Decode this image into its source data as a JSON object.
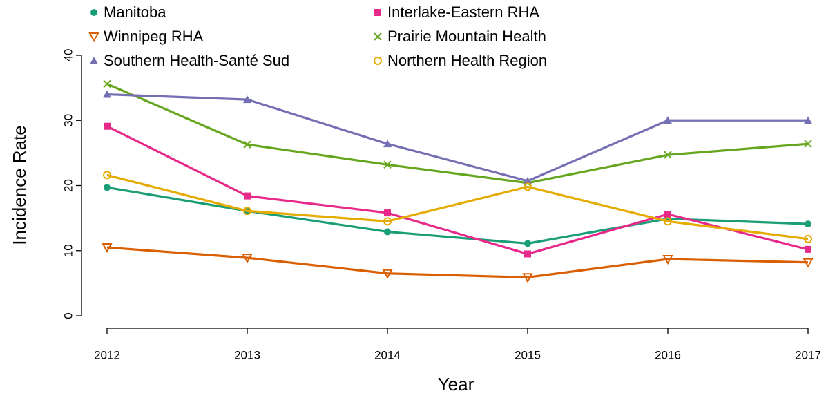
{
  "chart_data": {
    "type": "line",
    "xlabel": "Year",
    "ylabel": "Incidence Rate",
    "x": [
      2012,
      2013,
      2014,
      2015,
      2016,
      2017
    ],
    "xlim": [
      2012,
      2017
    ],
    "xticks": [
      2012,
      2013,
      2014,
      2015,
      2016,
      2017
    ],
    "ylim": [
      0,
      40
    ],
    "yticks": [
      0,
      10,
      20,
      30,
      40
    ],
    "legend": "top",
    "series": [
      {
        "name": "Manitoba",
        "color": "#1b9e77",
        "marker": "circle",
        "values": [
          19.7,
          16.1,
          12.9,
          11.1,
          14.9,
          14.1
        ]
      },
      {
        "name": "Interlake-Eastern RHA",
        "color": "#e7298a",
        "marker": "square",
        "values": [
          29.1,
          18.4,
          15.8,
          9.5,
          15.6,
          10.2
        ]
      },
      {
        "name": "Winnipeg RHA",
        "color": "#d95f02",
        "marker": "triangle-down-open",
        "values": [
          10.5,
          8.9,
          6.5,
          5.9,
          8.7,
          8.2
        ]
      },
      {
        "name": "Prairie Mountain Health",
        "color": "#66a61e",
        "marker": "cross",
        "values": [
          35.6,
          26.3,
          23.2,
          20.4,
          24.7,
          26.4
        ]
      },
      {
        "name": "Southern Health-Santé Sud",
        "color": "#7570b3",
        "marker": "triangle-up",
        "values": [
          34.0,
          33.2,
          26.4,
          20.7,
          30.0,
          30.0
        ]
      },
      {
        "name": "Northern Health Region",
        "color": "#e6ab02",
        "marker": "circle-open",
        "values": [
          21.6,
          16.1,
          14.5,
          19.8,
          14.5,
          11.8
        ]
      }
    ]
  }
}
